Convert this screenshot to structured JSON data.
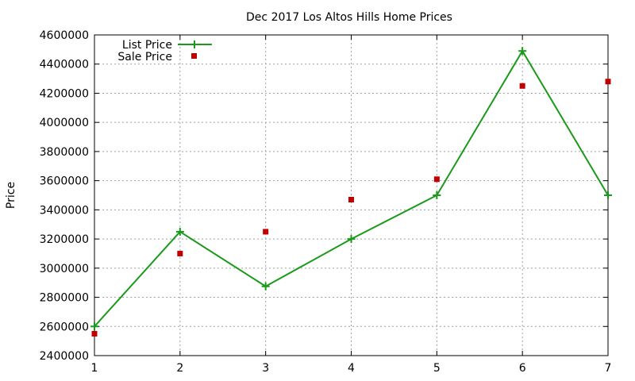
{
  "chart_data": {
    "type": "line",
    "title": "Dec 2017 Los Altos Hills Home Prices",
    "xlabel": "",
    "ylabel": "Price",
    "xlim": [
      1,
      7
    ],
    "ylim": [
      2400000,
      4600000
    ],
    "x_ticks": [
      1,
      2,
      3,
      4,
      5,
      6,
      7
    ],
    "y_ticks": [
      2400000,
      2600000,
      2800000,
      3000000,
      3200000,
      3400000,
      3600000,
      3800000,
      4000000,
      4200000,
      4400000,
      4600000
    ],
    "grid": true,
    "legend_position": "top-left",
    "series": [
      {
        "name": "List Price",
        "style": "line-points",
        "marker": "plus",
        "color": "#1a9a1a",
        "x": [
          1,
          2,
          3,
          4,
          5,
          6,
          7
        ],
        "values": [
          2600000,
          3250000,
          2875000,
          3200000,
          3500000,
          4490000,
          3500000
        ]
      },
      {
        "name": "Sale Price",
        "style": "points",
        "marker": "square",
        "color": "#c00000",
        "x": [
          1,
          2,
          3,
          4,
          5,
          6,
          7
        ],
        "values": [
          2550000,
          3100000,
          3250000,
          3470000,
          3610000,
          4250000,
          4280000
        ]
      }
    ]
  }
}
